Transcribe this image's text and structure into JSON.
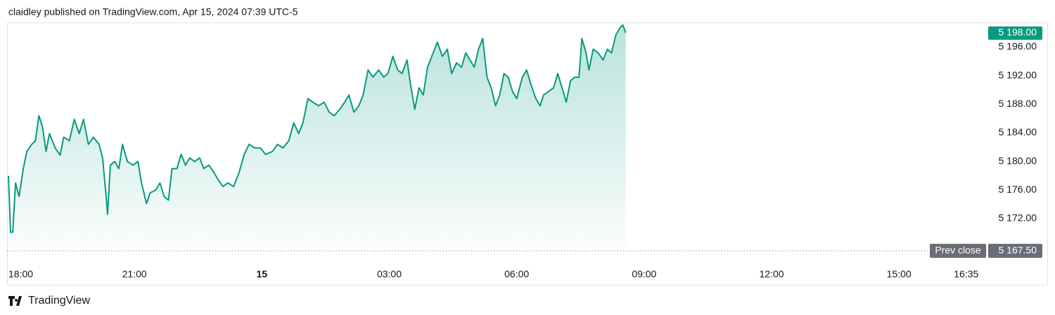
{
  "header": {
    "title": "claidley published on TradingView.com, Apr 15, 2024 07:39 UTC-5"
  },
  "footer": {
    "brand": "TradingView"
  },
  "chart_data": {
    "type": "area",
    "color": "#089981",
    "x": [
      2,
      5,
      8,
      12,
      17,
      23,
      28,
      35,
      40,
      45,
      50,
      55,
      60,
      68,
      75,
      80,
      88,
      95,
      102,
      108,
      115,
      122,
      130,
      135,
      140,
      142,
      146,
      152,
      158,
      163,
      170,
      178,
      185,
      190,
      197,
      202,
      210,
      216,
      222,
      228,
      233,
      240,
      246,
      252,
      258,
      265,
      272,
      278,
      285,
      292,
      298,
      305,
      312,
      320,
      328,
      335,
      342,
      350,
      358,
      365,
      375,
      382,
      390,
      398,
      405,
      412,
      418,
      425,
      432,
      440,
      448,
      455,
      462,
      470,
      477,
      483,
      490,
      497,
      503,
      510,
      517,
      525,
      532,
      538,
      545,
      552,
      558,
      565,
      570,
      576,
      582,
      588,
      594,
      602,
      608,
      615,
      622,
      628,
      635,
      642,
      648,
      654,
      660,
      666,
      672,
      678,
      684,
      690,
      696,
      702,
      708,
      714,
      720,
      728,
      734,
      740,
      747,
      753,
      758,
      765,
      772,
      778,
      784,
      790,
      796,
      802,
      808,
      812,
      818,
      822,
      828,
      835,
      842,
      848,
      854,
      860,
      866,
      870,
      874
    ],
    "series": [
      {
        "name": "",
        "values": [
          5178.0,
          5170.1,
          5170.1,
          5177.0,
          5175.1,
          5179.0,
          5181.4,
          5182.4,
          5182.9,
          5186.4,
          5184.9,
          5181.4,
          5183.9,
          5181.9,
          5180.9,
          5183.4,
          5182.9,
          5185.9,
          5183.9,
          5185.9,
          5182.4,
          5183.4,
          5182.4,
          5180.5,
          5175.1,
          5172.6,
          5179.5,
          5180.0,
          5179.0,
          5182.4,
          5180.0,
          5179.5,
          5180.0,
          5177.0,
          5174.1,
          5175.6,
          5176.0,
          5177.0,
          5175.1,
          5174.6,
          5179.0,
          5179.0,
          5181.0,
          5179.5,
          5180.5,
          5180.0,
          5180.5,
          5179.0,
          5179.5,
          5178.5,
          5177.5,
          5176.5,
          5177.0,
          5176.5,
          5178.5,
          5181.0,
          5182.4,
          5181.9,
          5181.9,
          5181.0,
          5181.4,
          5182.4,
          5181.9,
          5182.9,
          5185.4,
          5183.9,
          5185.4,
          5188.8,
          5188.3,
          5187.8,
          5188.3,
          5186.9,
          5186.4,
          5187.3,
          5188.3,
          5189.3,
          5186.9,
          5187.8,
          5189.3,
          5192.8,
          5191.8,
          5192.8,
          5191.8,
          5192.3,
          5194.7,
          5192.8,
          5192.3,
          5194.2,
          5190.8,
          5187.3,
          5190.3,
          5189.3,
          5193.2,
          5195.2,
          5196.7,
          5194.7,
          5195.7,
          5192.3,
          5193.8,
          5193.2,
          5195.2,
          5194.2,
          5193.2,
          5195.7,
          5197.2,
          5191.8,
          5190.3,
          5187.8,
          5189.3,
          5192.3,
          5191.8,
          5189.8,
          5188.8,
          5191.8,
          5192.8,
          5190.8,
          5188.8,
          5187.8,
          5189.3,
          5189.8,
          5190.3,
          5192.3,
          5190.3,
          5188.3,
          5191.3,
          5191.8,
          5191.8,
          5197.2,
          5195.2,
          5192.8,
          5195.7,
          5195.2,
          5194.2,
          5195.7,
          5195.2,
          5197.7,
          5198.7,
          5199.1,
          5198.0
        ]
      }
    ],
    "last_price": {
      "value": 5198,
      "label": "5 198.00"
    },
    "prev_close": {
      "name": "Prev close",
      "value": 5167.5,
      "label": "5 167.50"
    },
    "xlim": [
      0,
      1387
    ],
    "xticks": [
      {
        "value": 0,
        "label": "18:00"
      },
      {
        "value": 180,
        "label": "21:00"
      },
      {
        "value": 360,
        "label": "15"
      },
      {
        "value": 540,
        "label": "03:00"
      },
      {
        "value": 720,
        "label": "06:00"
      },
      {
        "value": 900,
        "label": "09:00"
      },
      {
        "value": 1080,
        "label": "12:00"
      },
      {
        "value": 1260,
        "label": "15:00"
      },
      {
        "value": 1355,
        "label": "16:35"
      }
    ],
    "ylim": [
      5166.2,
      5199.44
    ],
    "yticks": [
      {
        "value": 5172,
        "label": "5 172.00"
      },
      {
        "value": 5176,
        "label": "5 176.00"
      },
      {
        "value": 5180,
        "label": "5 180.00"
      },
      {
        "value": 5184,
        "label": "5 184.00"
      },
      {
        "value": 5188,
        "label": "5 188.00"
      },
      {
        "value": 5192,
        "label": "5 192.00"
      },
      {
        "value": 5196,
        "label": "5 196.00"
      }
    ]
  }
}
